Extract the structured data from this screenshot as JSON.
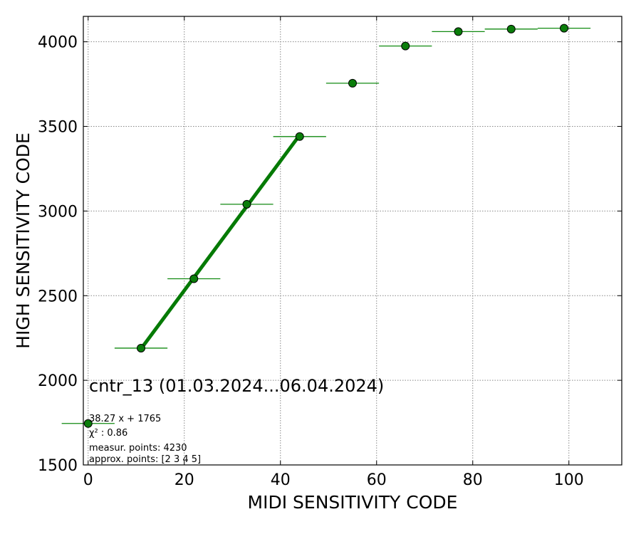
{
  "chart_data": {
    "type": "scatter",
    "xlabel": "MIDI SENSITIVITY CODE",
    "ylabel": "HIGH SENSITIVITY CODE",
    "xlim": [
      -1,
      111
    ],
    "ylim": [
      1500,
      4150
    ],
    "xticks": [
      0,
      20,
      40,
      60,
      80,
      100
    ],
    "yticks": [
      1500,
      2000,
      2500,
      3000,
      3500,
      4000
    ],
    "grid": true,
    "points": [
      {
        "x": 0,
        "y": 1745,
        "xerr": 5.5
      },
      {
        "x": 11,
        "y": 2190,
        "xerr": 5.5
      },
      {
        "x": 22,
        "y": 2600,
        "xerr": 5.5
      },
      {
        "x": 33,
        "y": 3040,
        "xerr": 5.5
      },
      {
        "x": 44,
        "y": 3440,
        "xerr": 5.5
      },
      {
        "x": 55,
        "y": 3755,
        "xerr": 5.5
      },
      {
        "x": 66,
        "y": 3975,
        "xerr": 5.5
      },
      {
        "x": 77,
        "y": 4060,
        "xerr": 5.5
      },
      {
        "x": 88,
        "y": 4075,
        "xerr": 5.5
      },
      {
        "x": 99,
        "y": 4080,
        "xerr": 5.5
      }
    ],
    "fit_line": {
      "x_from": 11,
      "x_to": 44,
      "slope": 38.27,
      "intercept": 1765
    },
    "colors": {
      "point_fill": "#0a7d0a",
      "line": "#057a05",
      "errbar": "#118a11",
      "grid": "#888888"
    },
    "annotations": {
      "title": "cntr_13 (01.03.2024...06.04.2024)",
      "equation": "38.27 x + 1765",
      "chi2": "χ² : 0.86",
      "measur": "measur. points: 4230",
      "approx": "approx. points: [2 3 4 5]"
    }
  }
}
